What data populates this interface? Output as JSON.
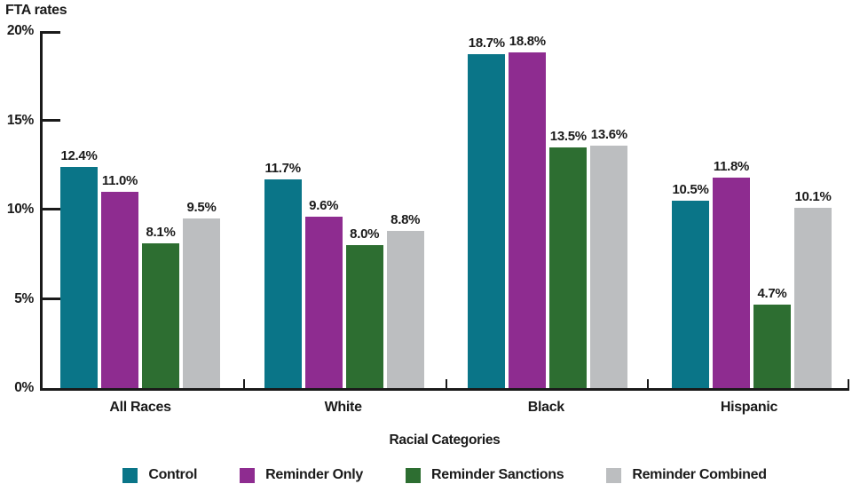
{
  "chart_data": {
    "type": "bar",
    "title": "FTA rates",
    "ylabel": "FTA rates",
    "xlabel": "Racial Categories",
    "categories": [
      "All Races",
      "White",
      "Black",
      "Hispanic"
    ],
    "series": [
      {
        "name": "Control",
        "color": "#0A7588",
        "values": [
          12.4,
          11.7,
          18.7,
          10.5
        ],
        "labels": [
          "12.4%",
          "11.7%",
          "18.7%",
          "10.5%"
        ]
      },
      {
        "name": "Reminder Only",
        "color": "#8E2C90",
        "values": [
          11.0,
          9.6,
          18.8,
          11.8
        ],
        "labels": [
          "11.0%",
          "9.6%",
          "18.8%",
          "11.8%"
        ]
      },
      {
        "name": "Reminder Sanctions",
        "color": "#2D6E31",
        "values": [
          8.1,
          8.0,
          13.5,
          4.7
        ],
        "labels": [
          "8.1%",
          "8.0%",
          "13.5%",
          "4.7%"
        ]
      },
      {
        "name": "Reminder Combined",
        "color": "#BCBEC0",
        "values": [
          9.5,
          8.8,
          13.6,
          10.1
        ],
        "labels": [
          "9.5%",
          "8.8%",
          "13.6%",
          "10.1%"
        ]
      }
    ],
    "ylim": [
      0,
      20
    ],
    "yticks": [
      "0%",
      "5%",
      "10%",
      "15%",
      "20%"
    ],
    "grid": false,
    "bar_value_labels": true,
    "legend_position": "bottom",
    "axis_color": "#1a1a1a",
    "background": "#ffffff"
  }
}
